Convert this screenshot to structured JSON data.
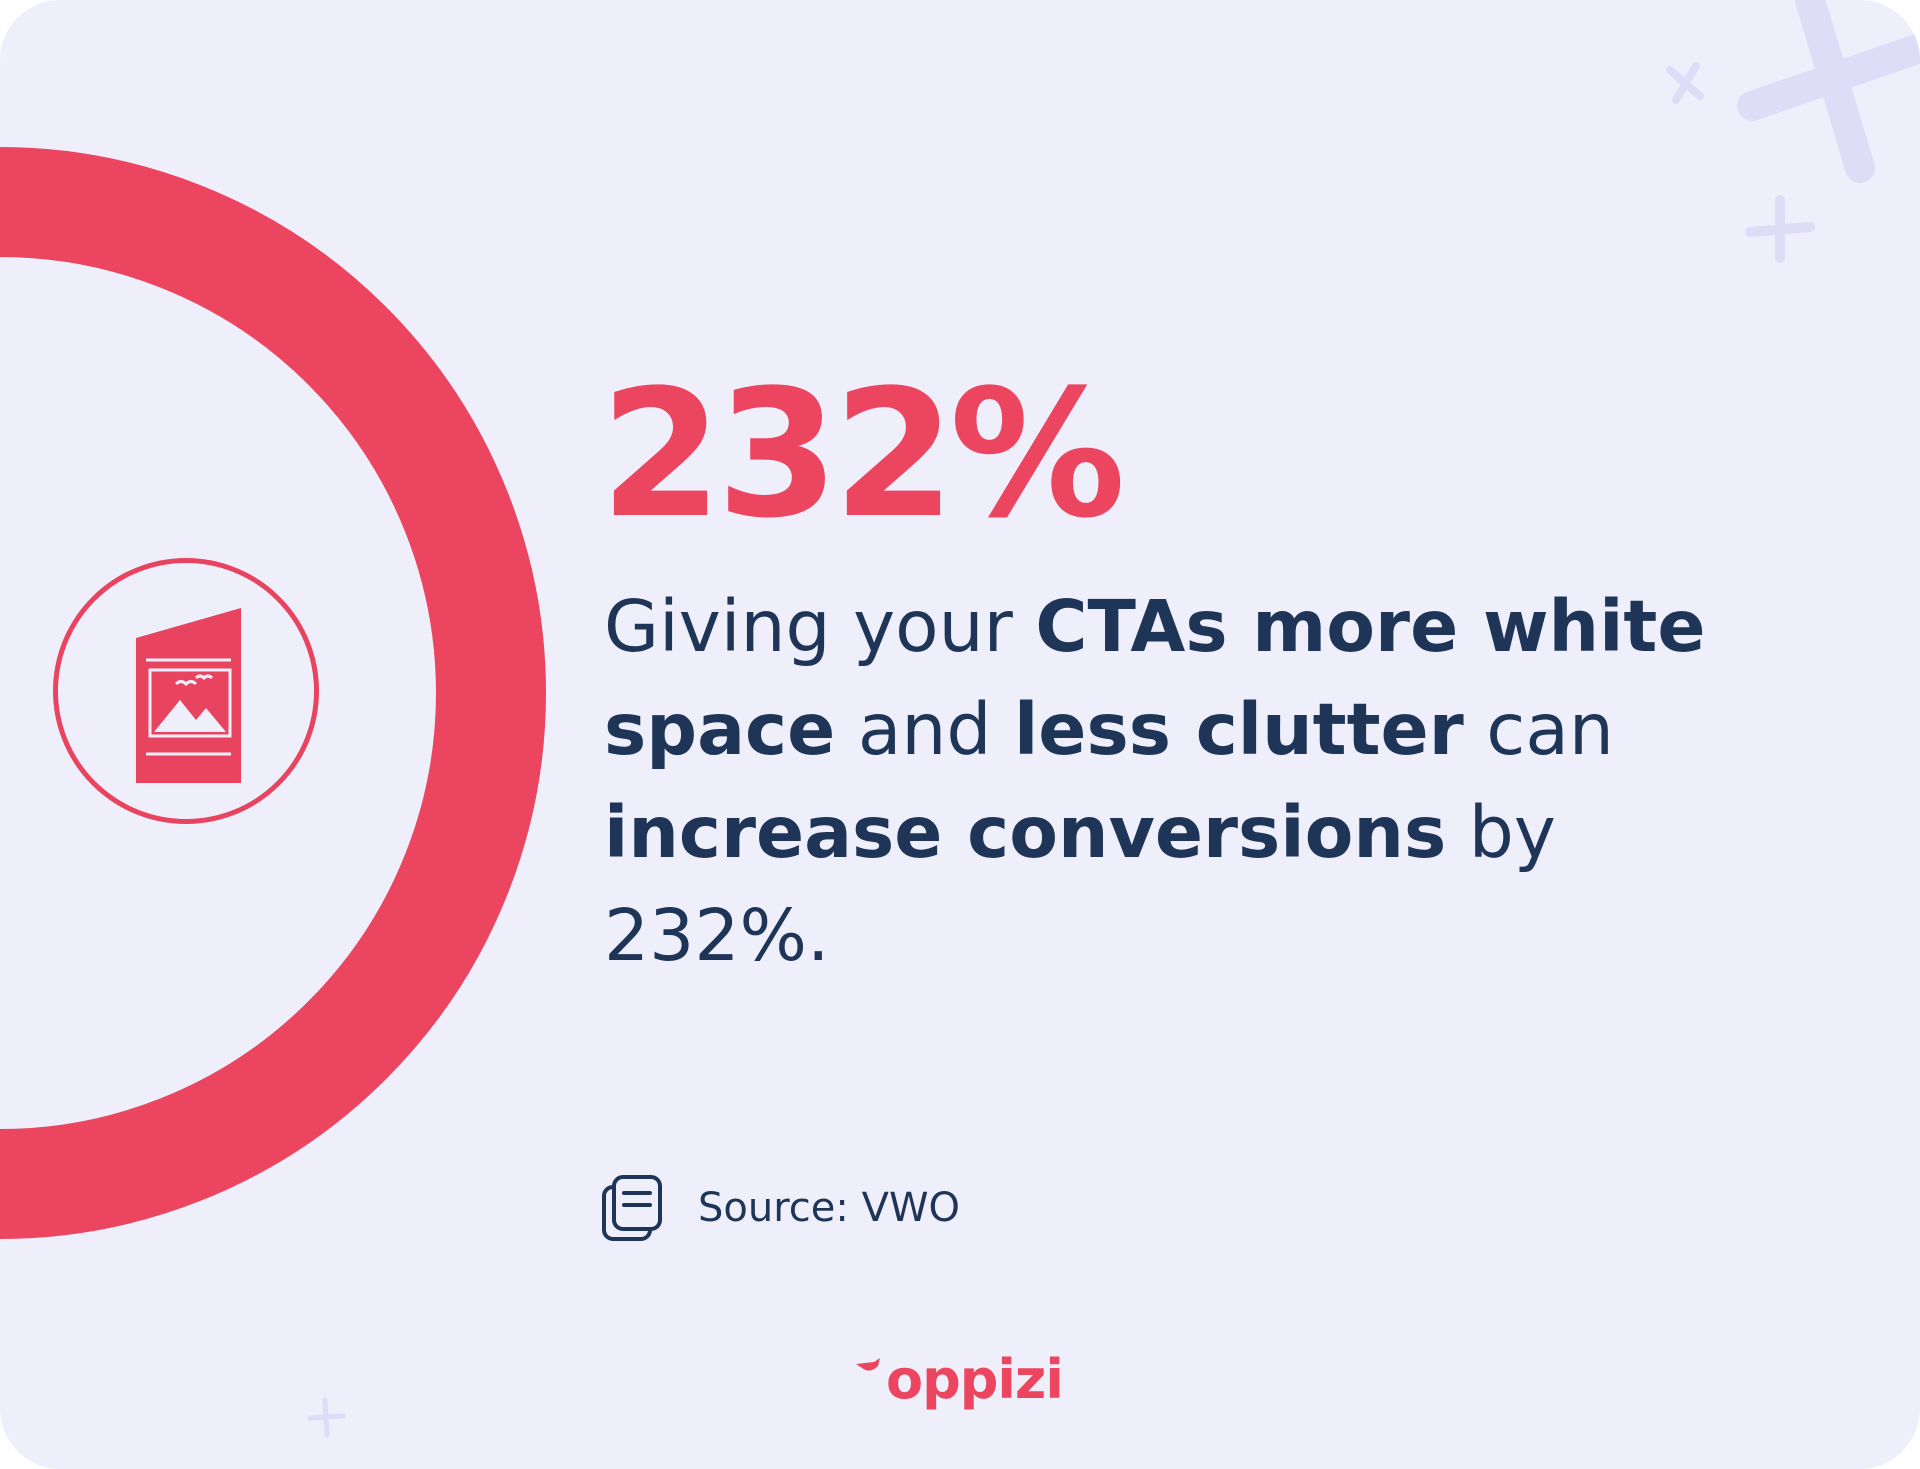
{
  "stat": {
    "value": "232%",
    "progress_fraction": 0.8,
    "accent_color": "#ec4560",
    "track_color": "#e0dff7"
  },
  "description": {
    "p1": "Giving your ",
    "b1": "CTAs more white space",
    "p2": " and ",
    "b2": "less clutter",
    "p3": " can ",
    "b3": "increase conversions",
    "p4": " by 232%."
  },
  "source": {
    "icon": "document-stack-icon",
    "label": "Source: VWO"
  },
  "badge": {
    "icon": "brochure-image-icon"
  },
  "brand": {
    "name": "oppizi",
    "color": "#ec4560"
  },
  "colors": {
    "background": "#efeffc",
    "text": "#1f3557",
    "decor": "#dedcf6"
  }
}
